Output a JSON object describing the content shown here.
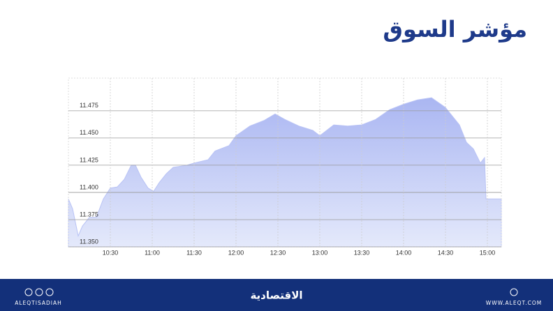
{
  "chart_data": {
    "type": "area",
    "title": "مؤشر السوق",
    "color": "#b9c3f5",
    "x": [
      600,
      603,
      607,
      610,
      615,
      620,
      625,
      630,
      635,
      640,
      645,
      648,
      652,
      657,
      661,
      665,
      670,
      675,
      685,
      690,
      700,
      705,
      715,
      720,
      730,
      740,
      748,
      755,
      765,
      775,
      780,
      790,
      800,
      810,
      820,
      830,
      840,
      850,
      860,
      870,
      880,
      885,
      890,
      895,
      898,
      899,
      910
    ],
    "values": [
      11.394,
      11.385,
      11.36,
      11.369,
      11.377,
      11.377,
      11.394,
      11.404,
      11.405,
      11.412,
      11.425,
      11.425,
      11.414,
      11.404,
      11.401,
      11.409,
      11.417,
      11.423,
      11.425,
      11.427,
      11.43,
      11.438,
      11.443,
      11.452,
      11.461,
      11.466,
      11.472,
      11.467,
      11.461,
      11.457,
      11.452,
      11.462,
      11.461,
      11.462,
      11.467,
      11.476,
      11.481,
      11.485,
      11.487,
      11.478,
      11.462,
      11.446,
      11.44,
      11.427,
      11.432,
      11.394,
      11.394
    ],
    "xlim": [
      600,
      910
    ],
    "xticks": [
      {
        "value": 630,
        "label": "10:30"
      },
      {
        "value": 660,
        "label": "11:00"
      },
      {
        "value": 690,
        "label": "11:30"
      },
      {
        "value": 720,
        "label": "12:00"
      },
      {
        "value": 750,
        "label": "12:30"
      },
      {
        "value": 780,
        "label": "13:00"
      },
      {
        "value": 810,
        "label": "13:30"
      },
      {
        "value": 840,
        "label": "14:00"
      },
      {
        "value": 870,
        "label": "14:30"
      },
      {
        "value": 900,
        "label": "15:00"
      }
    ],
    "ylim": [
      11.35,
      11.505
    ],
    "yticks": [
      {
        "value": 11.35,
        "label": "11.350"
      },
      {
        "value": 11.375,
        "label": "11.375"
      },
      {
        "value": 11.4,
        "label": "11.400"
      },
      {
        "value": 11.425,
        "label": "11.425"
      },
      {
        "value": 11.45,
        "label": "11.450"
      },
      {
        "value": 11.475,
        "label": "11.475"
      }
    ],
    "grid": true
  },
  "footer": {
    "handle": "ALEQTISADIAH",
    "brand": "الاقتصادية",
    "website": "WWW.ALEQT.COM"
  }
}
